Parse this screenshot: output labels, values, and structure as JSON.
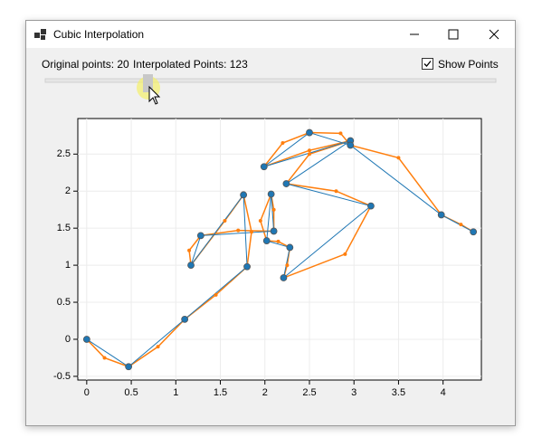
{
  "window": {
    "title": "Cubic Interpolation"
  },
  "controls": {
    "original_label": "Original points: 20",
    "interpolated_label": "Interpolated Points: 123",
    "checkbox_label": "Show Points",
    "checked": true
  },
  "chart_data": {
    "type": "line",
    "xlim": [
      -0.1,
      4.43
    ],
    "ylim": [
      -0.55,
      2.98
    ],
    "xticks": [
      0,
      0.5,
      1,
      1.5,
      2,
      2.5,
      3,
      3.5,
      4
    ],
    "yticks": [
      -0.5,
      0,
      0.5,
      1,
      1.5,
      2,
      2.5
    ],
    "grid": true,
    "series": [
      {
        "color": "#1f77b4",
        "x": [
          0,
          0.47,
          1.1,
          1.8,
          1.76,
          1.17,
          1.28,
          2.1,
          2.07,
          2.02,
          2.28,
          2.21,
          3.19,
          2.24,
          2.96,
          1.99,
          2.5,
          2.96,
          3.98,
          4.34
        ],
        "values": [
          0,
          -0.37,
          0.27,
          0.98,
          1.95,
          1.0,
          1.4,
          1.46,
          1.96,
          1.33,
          1.24,
          0.83,
          1.8,
          2.1,
          2.68,
          2.33,
          2.79,
          2.62,
          1.68,
          1.45
        ]
      },
      {
        "color": "#ff7f0e",
        "x": [
          0,
          0.2,
          0.47,
          0.8,
          1.1,
          1.45,
          1.8,
          1.85,
          1.76,
          1.55,
          1.17,
          1.15,
          1.28,
          1.7,
          2.1,
          2.1,
          2.07,
          1.95,
          2.02,
          2.15,
          2.28,
          2.25,
          2.21,
          2.9,
          3.19,
          2.8,
          2.24,
          2.5,
          2.96,
          2.5,
          1.99,
          2.2,
          2.5,
          2.85,
          2.96,
          3.5,
          3.98,
          4.2,
          4.34
        ],
        "values": [
          0,
          -0.25,
          -0.37,
          -0.1,
          0.27,
          0.6,
          0.98,
          1.45,
          1.95,
          1.6,
          1.0,
          1.2,
          1.4,
          1.47,
          1.46,
          1.75,
          1.96,
          1.6,
          1.33,
          1.32,
          1.24,
          1.0,
          0.83,
          1.15,
          1.8,
          2.0,
          2.1,
          2.5,
          2.68,
          2.55,
          2.33,
          2.65,
          2.79,
          2.78,
          2.62,
          2.45,
          1.68,
          1.55,
          1.45
        ]
      }
    ]
  }
}
